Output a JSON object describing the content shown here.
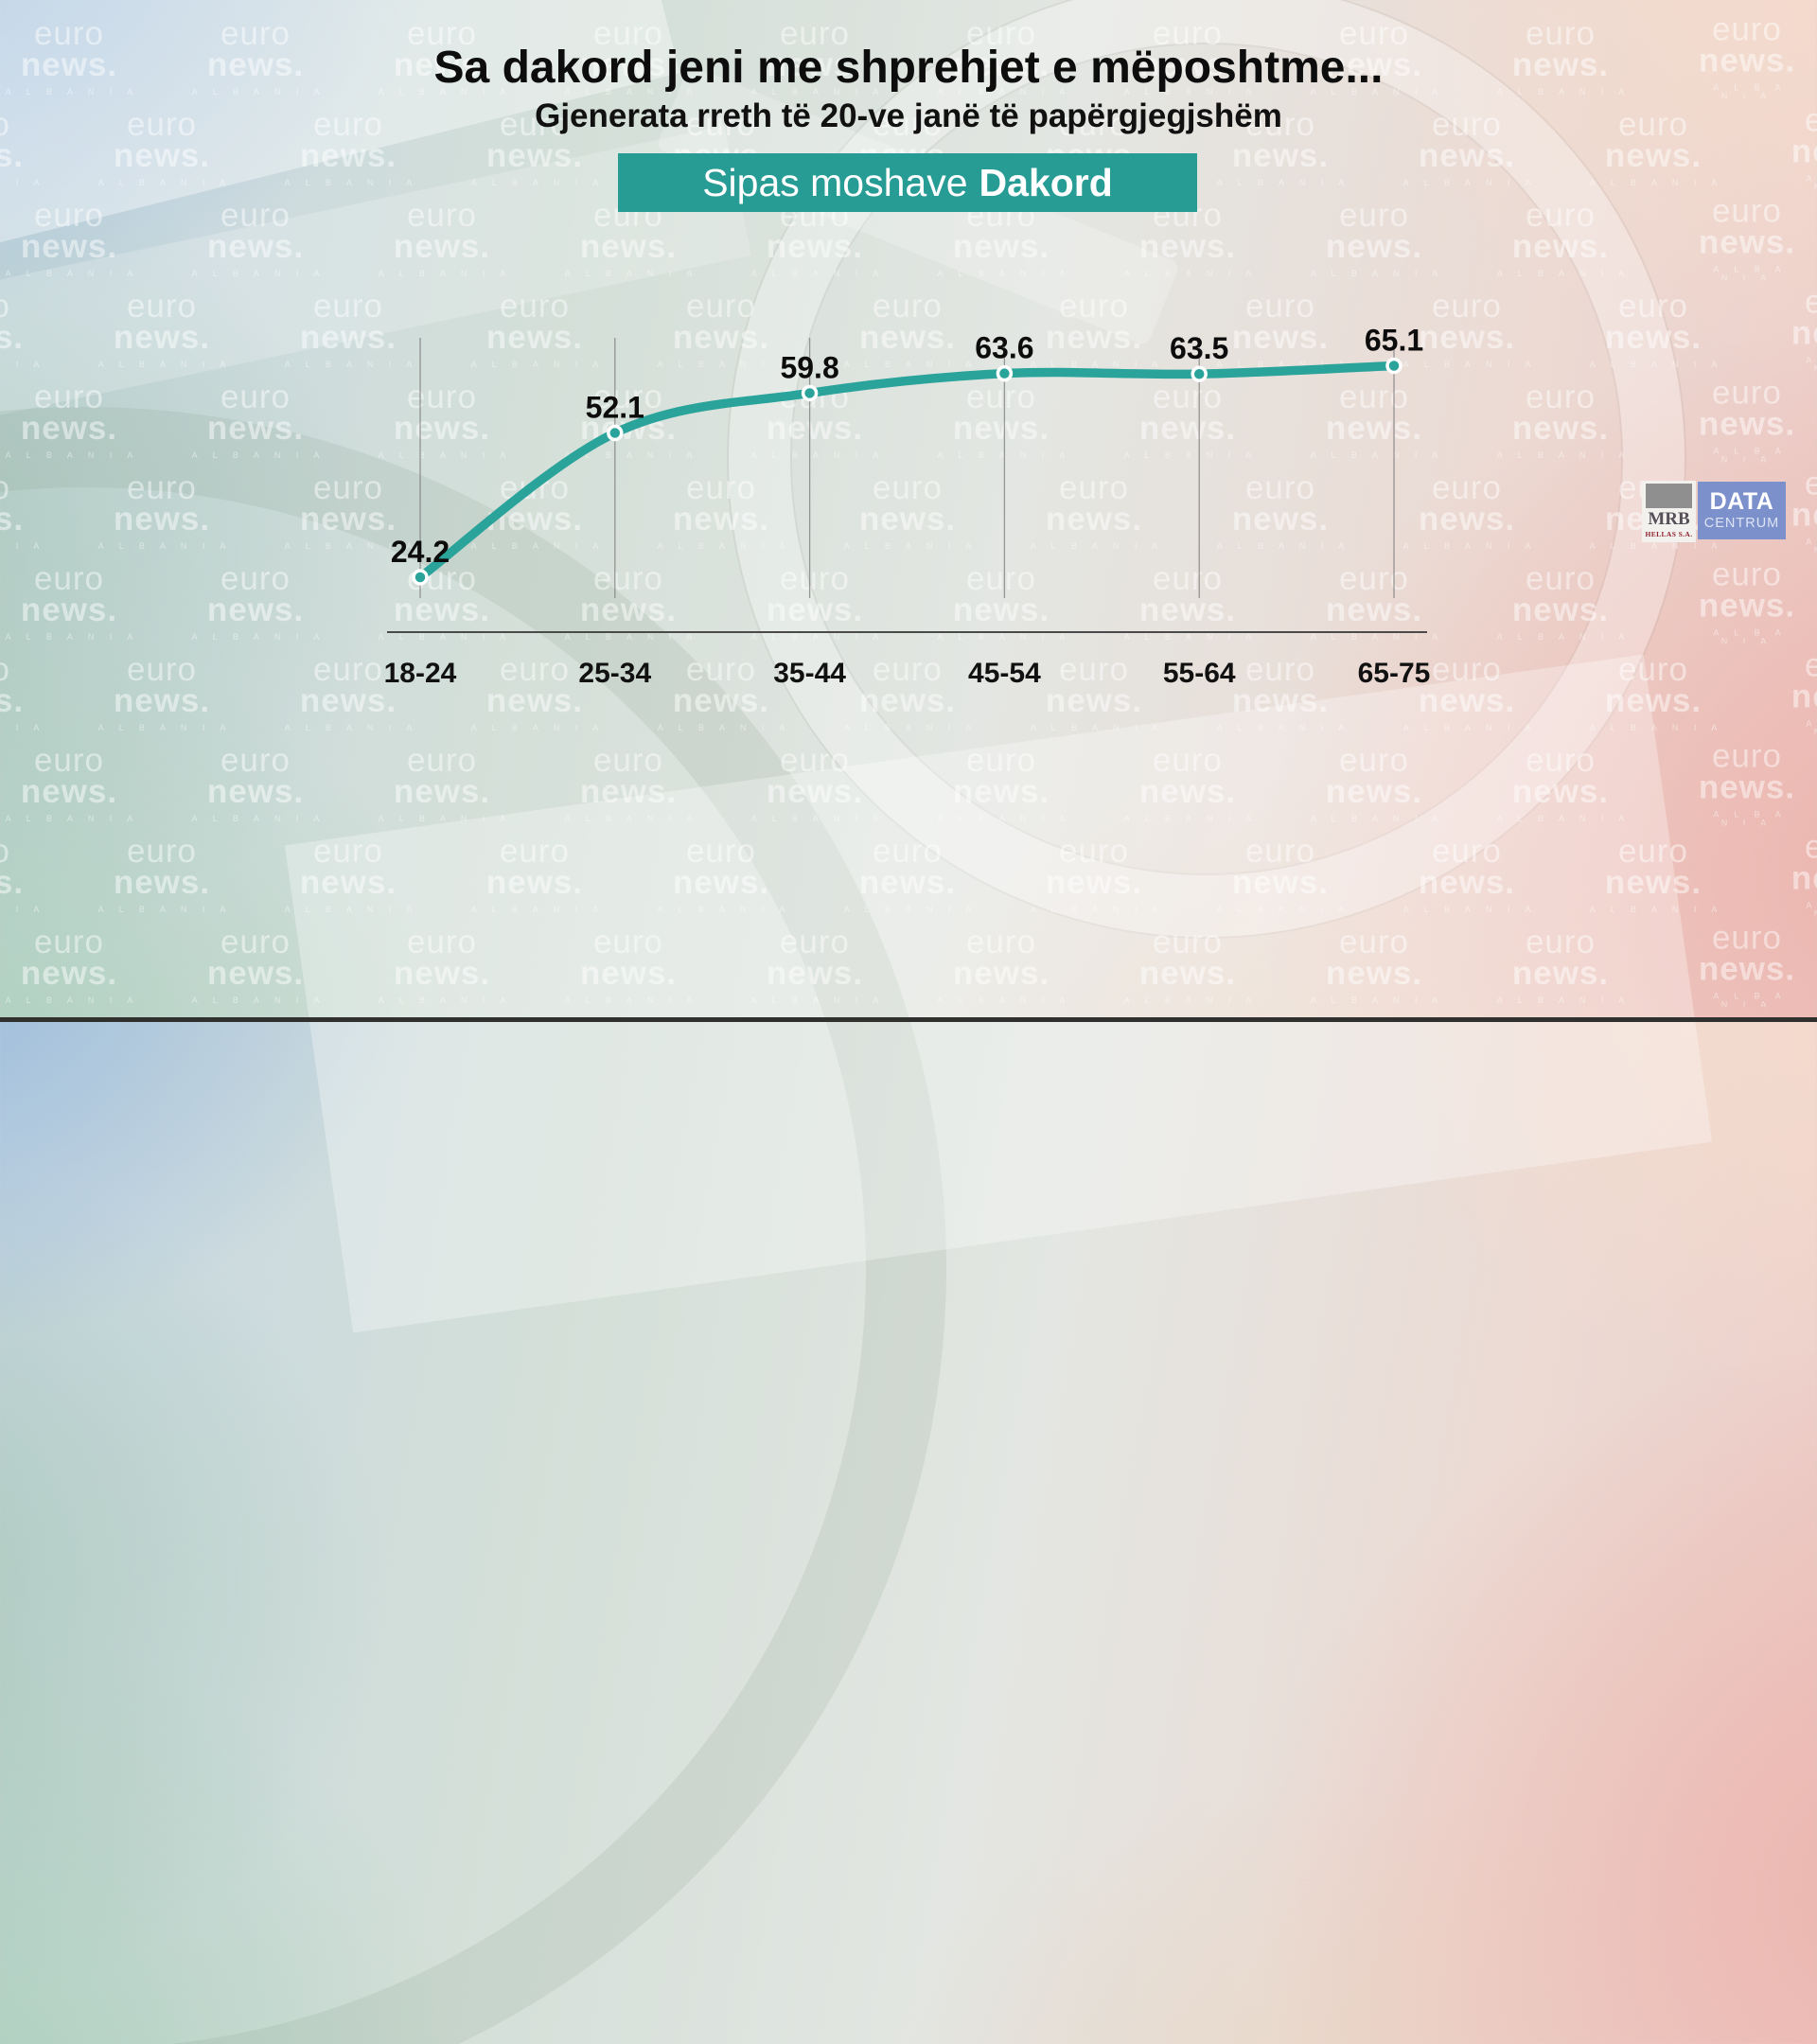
{
  "header": {
    "title": "Sa dakord jeni me shprehjet e mëposhtme...",
    "subtitle": "Gjenerata rreth të 20-ve janë të papërgjegjshëm",
    "banner": {
      "prefix": "Sipas moshave",
      "bold": "Dakord",
      "bg_color": "#279c95"
    }
  },
  "chart_data": {
    "type": "line",
    "title": "Sa dakord jeni me shprehjet e mëposhtme...",
    "subtitle": "Gjenerata rreth të 20-ve janë të papërgjegjshëm",
    "legend": "Sipas moshave Dakord",
    "categories": [
      "18-24",
      "25-34",
      "35-44",
      "45-54",
      "55-64",
      "65-75"
    ],
    "values": [
      24.2,
      52.1,
      59.8,
      63.6,
      63.5,
      65.1
    ],
    "series": [
      {
        "name": "Dakord",
        "values": [
          24.2,
          52.1,
          59.8,
          63.6,
          63.5,
          65.1
        ]
      }
    ],
    "xlabel": "",
    "ylabel": "",
    "y_axis_visible": false,
    "data_labels": true,
    "grid": "vertical-tick-lines",
    "line_color": "#2aa39b",
    "point_style": "teal dot with white ring",
    "label_color": "#0c0c0c",
    "axis_color": "#4a4a4a"
  },
  "watermark": {
    "line1": "euro",
    "line2": "news.",
    "line3": "A L B A N I A"
  },
  "source_logo": {
    "mrb": "MRB",
    "mrb_sub": "HELLAS S.A.",
    "data": "DATA",
    "centrum": "CENTRUM",
    "blue": "#7c90cb"
  }
}
